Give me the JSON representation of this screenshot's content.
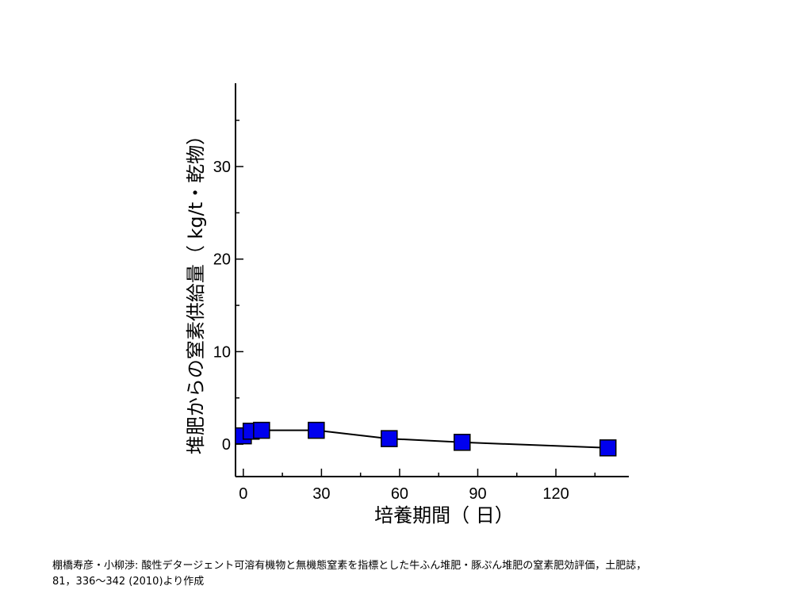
{
  "chart_data": {
    "type": "line",
    "xlabel": "培養期間（ 日）",
    "ylabel": "堆肥からの窒素供給量（ kg/t・乾物）",
    "xlim": [
      -3,
      148
    ],
    "ylim": [
      -3.5,
      39
    ],
    "x_ticks": [
      0,
      30,
      60,
      90,
      120
    ],
    "y_ticks": [
      0,
      10,
      20,
      30
    ],
    "x_minor_step": 15,
    "y_minor_step": 5,
    "grid": false,
    "marker": "square",
    "colors": {
      "marker_fill": "#0000ee",
      "marker_edge": "#000000",
      "line": "#000000"
    },
    "series": [
      {
        "x": [
          0,
          3,
          7,
          28,
          56,
          84,
          140
        ],
        "y": [
          0.9,
          1.4,
          1.5,
          1.5,
          0.6,
          0.2,
          -0.4
        ]
      }
    ]
  },
  "citation": {
    "line1": "棚橋寿彦・小柳渉: 酸性デタージェント可溶有機物と無機態窒素を指標とした牛ふん堆肥・豚ぷん堆肥の窒素肥効評価，土肥誌，",
    "line2": "81，336～342 (2010)より作成"
  }
}
